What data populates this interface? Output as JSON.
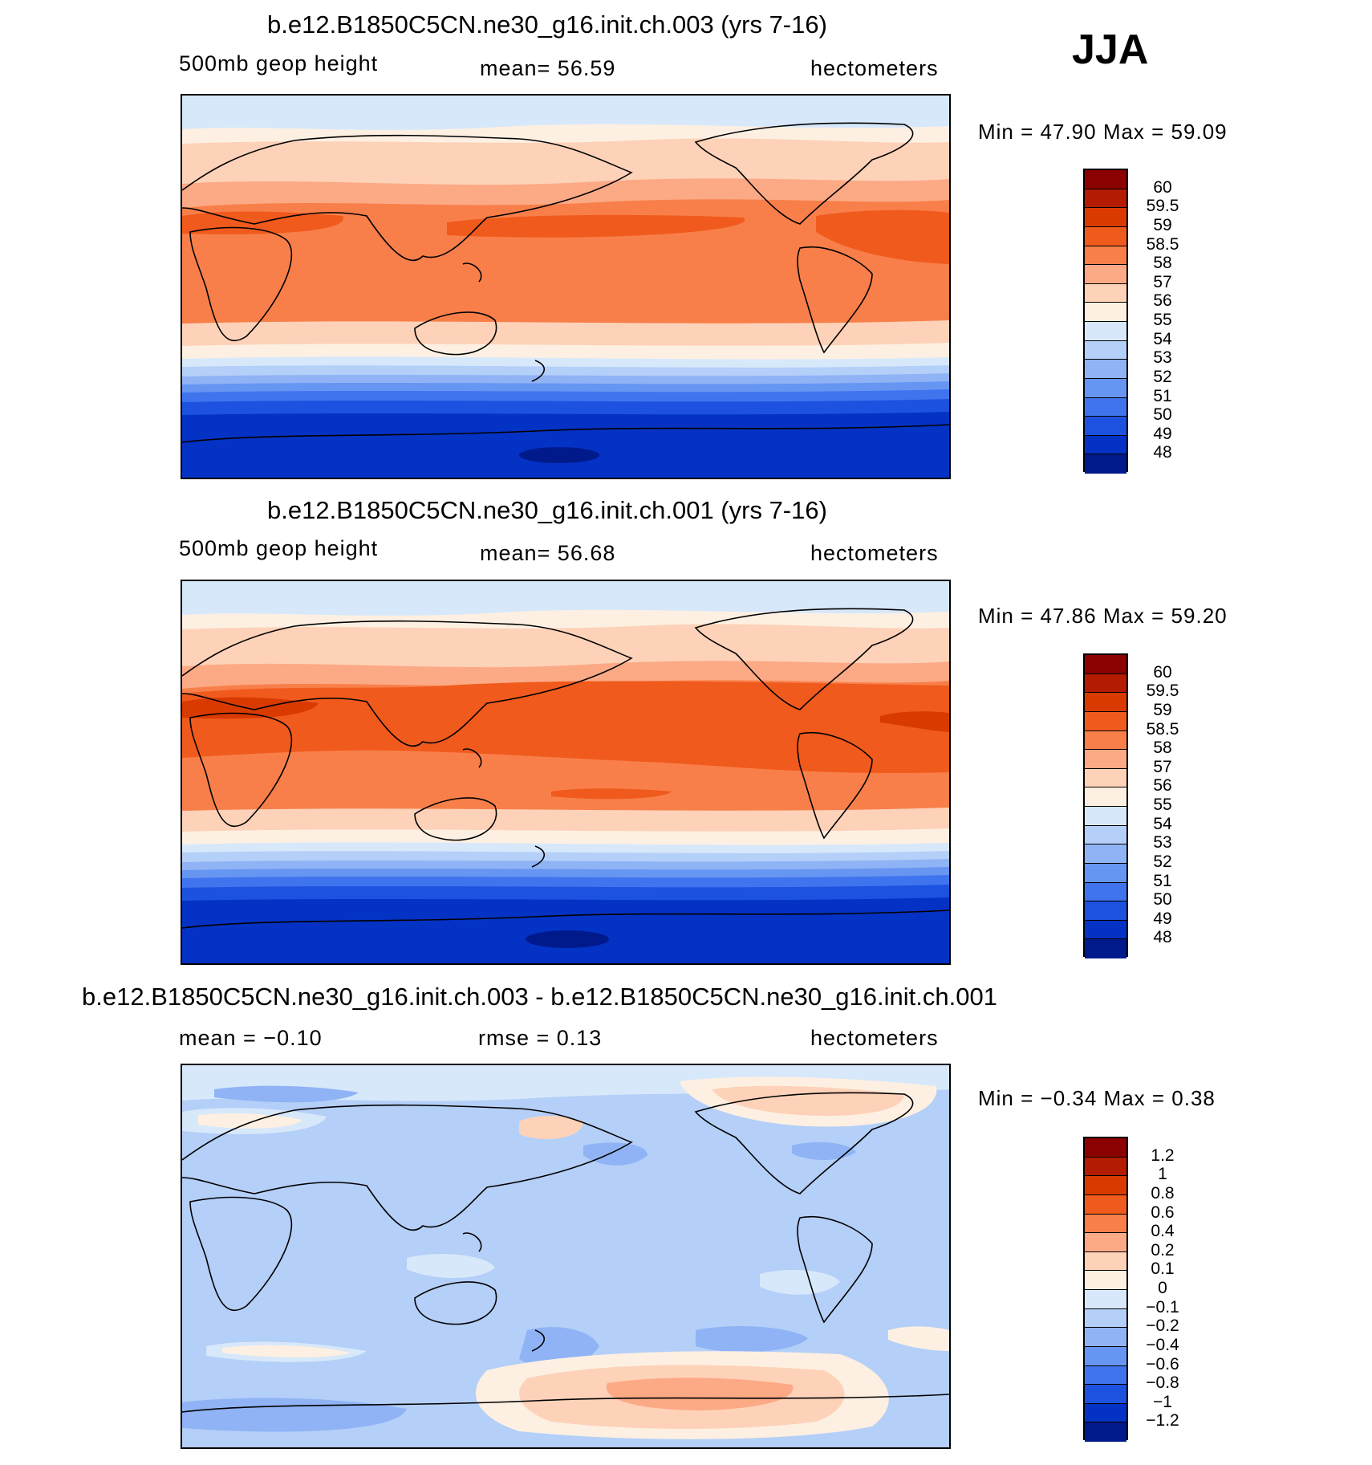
{
  "season": "JJA",
  "panels": [
    {
      "title": "b.e12.B1850C5CN.ne30_g16.init.ch.003 (yrs 7-16)",
      "left_label": "500mb  geop  height",
      "center_label": "mean=   56.59",
      "units": "hectometers",
      "minmax": "Min =   47.90  Max =   59.09",
      "colorbar": {
        "labels": [
          "60",
          "59.5",
          "59",
          "58.5",
          "58",
          "57",
          "56",
          "55",
          "54",
          "53",
          "52",
          "51",
          "50",
          "49",
          "48"
        ],
        "colors": [
          "#8b0000",
          "#b31c00",
          "#d93a00",
          "#f05a1c",
          "#f87f4a",
          "#fca985",
          "#fdd2b8",
          "#fdf0e2",
          "#d7e8fa",
          "#b4cff8",
          "#8fb3f5",
          "#6795f2",
          "#3f74ee",
          "#1d52e0",
          "#0432c4",
          "#001a8c"
        ]
      }
    },
    {
      "title": "b.e12.B1850C5CN.ne30_g16.init.ch.001 (yrs 7-16)",
      "left_label": "500mb  geop  height",
      "center_label": "mean=   56.68",
      "units": "hectometers",
      "minmax": "Min =   47.86  Max =   59.20",
      "colorbar": {
        "labels": [
          "60",
          "59.5",
          "59",
          "58.5",
          "58",
          "57",
          "56",
          "55",
          "54",
          "53",
          "52",
          "51",
          "50",
          "49",
          "48"
        ],
        "colors": [
          "#8b0000",
          "#b31c00",
          "#d93a00",
          "#f05a1c",
          "#f87f4a",
          "#fca985",
          "#fdd2b8",
          "#fdf0e2",
          "#d7e8fa",
          "#b4cff8",
          "#8fb3f5",
          "#6795f2",
          "#3f74ee",
          "#1d52e0",
          "#0432c4",
          "#001a8c"
        ]
      }
    },
    {
      "title": "b.e12.B1850C5CN.ne30_g16.init.ch.003 - b.e12.B1850C5CN.ne30_g16.init.ch.001",
      "left_label": "mean =   −0.10",
      "center_label": "rmse =    0.13",
      "units": "hectometers",
      "minmax": "Min =  −0.34  Max =    0.38",
      "colorbar": {
        "labels": [
          "1.2",
          "1",
          "0.8",
          "0.6",
          "0.4",
          "0.2",
          "0.1",
          "0",
          "−0.1",
          "−0.2",
          "−0.4",
          "−0.6",
          "−0.8",
          "−1",
          "−1.2"
        ],
        "colors": [
          "#8b0000",
          "#b31c00",
          "#d93a00",
          "#f05a1c",
          "#f87f4a",
          "#fca985",
          "#fdd2b8",
          "#fdf0e2",
          "#d7e8fa",
          "#b4cff8",
          "#8fb3f5",
          "#6795f2",
          "#3f74ee",
          "#1d52e0",
          "#0432c4",
          "#001a8c"
        ]
      }
    }
  ]
}
